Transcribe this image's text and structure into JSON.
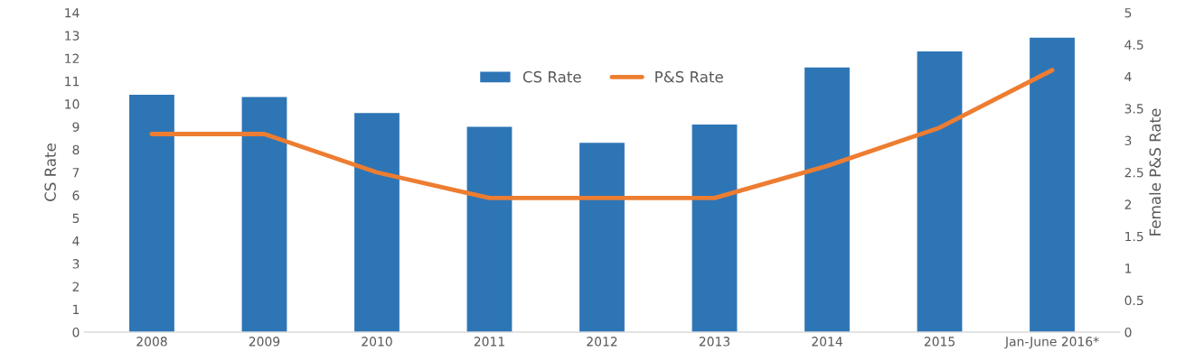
{
  "chart_data": {
    "type": "bar",
    "categories": [
      "2008",
      "2009",
      "2010",
      "2011",
      "2012",
      "2013",
      "2014",
      "2015",
      "Jan-June 2016*"
    ],
    "series": [
      {
        "name": "CS Rate",
        "color": "#2e75b6",
        "values": [
          10.4,
          10.3,
          9.6,
          9.0,
          8.3,
          9.1,
          11.6,
          12.3,
          12.9
        ]
      },
      {
        "name": "P&S Rate",
        "type": "line",
        "axis": "y2",
        "color": "#ed7d31",
        "values": [
          3.1,
          3.1,
          2.5,
          2.1,
          2.1,
          2.1,
          2.6,
          3.2,
          4.1
        ]
      }
    ],
    "ylabel": "CS Rate",
    "y2label": "Female P&S Rate",
    "ylim": [
      0,
      14
    ],
    "yticks": [
      0,
      1,
      2,
      3,
      4,
      5,
      6,
      7,
      8,
      9,
      10,
      11,
      12,
      13,
      14
    ],
    "y2lim": [
      0,
      5
    ],
    "y2ticks": [
      0,
      0.5,
      1,
      1.5,
      2,
      2.5,
      3,
      3.5,
      4,
      4.5,
      5
    ],
    "grid": false,
    "legend": "top",
    "line_style": "solid",
    "marker": "none"
  }
}
